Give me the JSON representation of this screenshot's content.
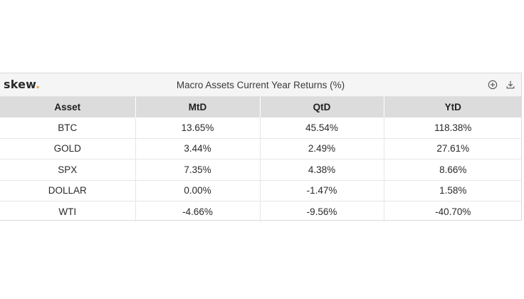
{
  "widget": {
    "logo_text": "skew",
    "logo_dot": ".",
    "title": "Macro Assets Current Year Returns (%)",
    "icons": [
      "add-circle-icon",
      "download-icon"
    ],
    "colors": {
      "header_bg": "#f5f5f5",
      "column_header_bg": "#dcdcdc",
      "logo_dot": "#e8a33a"
    }
  },
  "chart_data": {
    "type": "table",
    "title": "Macro Assets Current Year Returns (%)",
    "columns": [
      "Asset",
      "MtD",
      "QtD",
      "YtD"
    ],
    "rows": [
      [
        "BTC",
        "13.65%",
        "45.54%",
        "118.38%"
      ],
      [
        "GOLD",
        "3.44%",
        "2.49%",
        "27.61%"
      ],
      [
        "SPX",
        "7.35%",
        "4.38%",
        "8.66%"
      ],
      [
        "DOLLAR",
        "0.00%",
        "-1.47%",
        "1.58%"
      ],
      [
        "WTI",
        "-4.66%",
        "-9.56%",
        "-40.70%"
      ]
    ]
  }
}
